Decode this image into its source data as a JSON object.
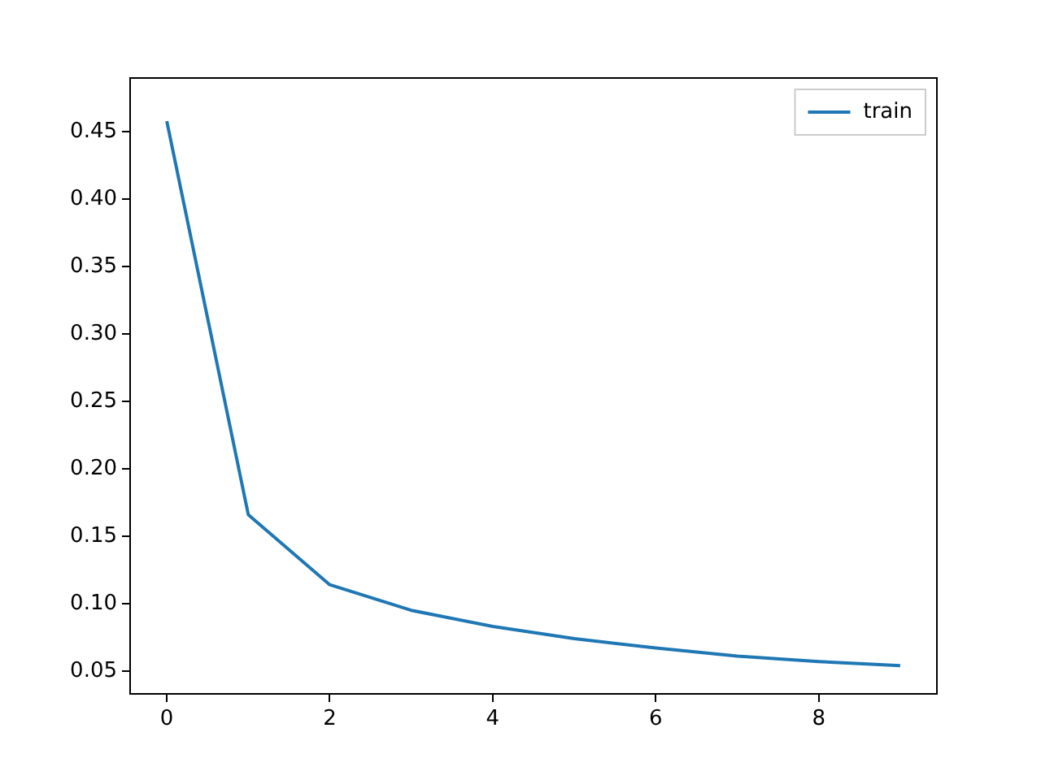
{
  "chart_data": {
    "type": "line",
    "x": [
      0,
      1,
      2,
      3,
      4,
      5,
      6,
      7,
      8,
      9
    ],
    "series": [
      {
        "name": "train",
        "color": "#1f77b4",
        "values": [
          0.458,
          0.166,
          0.114,
          0.095,
          0.083,
          0.074,
          0.067,
          0.061,
          0.057,
          0.054
        ]
      }
    ],
    "xlim": [
      -0.45,
      9.45
    ],
    "xticks": [
      0,
      2,
      4,
      6,
      8
    ],
    "ylim": [
      0.033,
      0.49
    ],
    "yticks": [
      0.05,
      {
        "value": 0.1,
        "label": "0.10"
      },
      0.15,
      {
        "value": 0.2,
        "label": "0.20"
      },
      0.25,
      {
        "value": 0.3,
        "label": "0.30"
      },
      0.35,
      {
        "value": 0.4,
        "label": "0.40"
      },
      0.45
    ],
    "grid": false,
    "legend": "top right",
    "marker": "none",
    "line_style": "solid"
  }
}
